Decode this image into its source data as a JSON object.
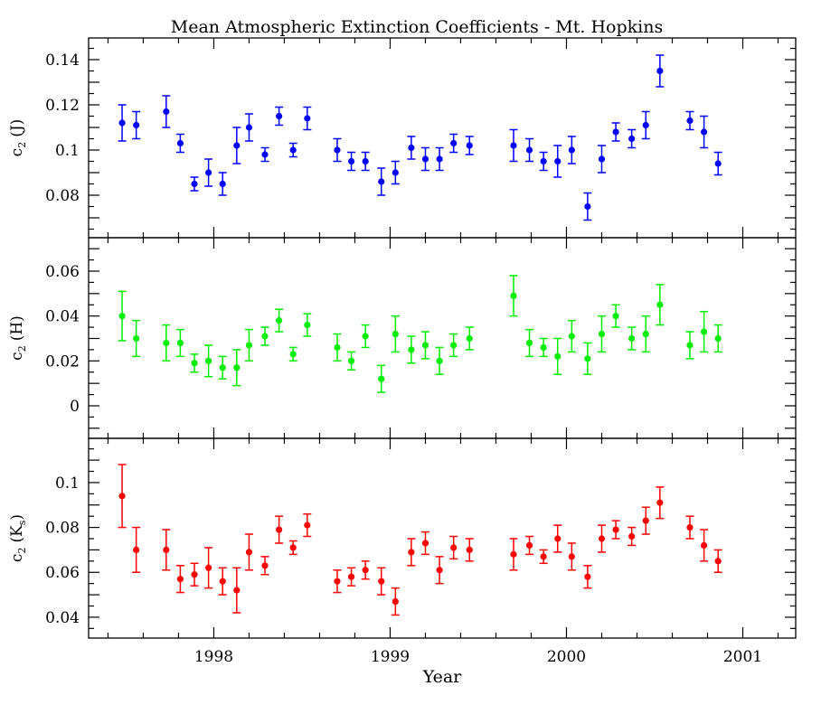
{
  "chart_data": {
    "type": "scatter",
    "title": "Mean Atmospheric Extinction Coefficients - Mt. Hopkins",
    "xlabel": "Year",
    "xlim": [
      1997.29,
      2001.3
    ],
    "x_ticks": [
      1998,
      1999,
      2000,
      2001
    ],
    "x_tick_labels": [
      "1998",
      "1999",
      "2000",
      "2001"
    ],
    "x_minor_step": 0.2,
    "panels": [
      {
        "name": "J",
        "ylabel_main": "c",
        "ylabel_sub": "2",
        "ylabel_band": "(J)",
        "ylabel_band_sub": "",
        "color": "#0000ff",
        "ylim": [
          0.0612,
          0.1496
        ],
        "y_ticks": [
          0.08,
          0.1,
          0.12,
          0.14
        ],
        "y_tick_labels": [
          "0.08",
          "0.1",
          "0.12",
          "0.14"
        ],
        "y_minor_step": 0.005,
        "points": [
          {
            "x": 1997.48,
            "y": 0.112,
            "err": 0.008
          },
          {
            "x": 1997.56,
            "y": 0.111,
            "err": 0.006
          },
          {
            "x": 1997.73,
            "y": 0.117,
            "err": 0.007
          },
          {
            "x": 1997.81,
            "y": 0.103,
            "err": 0.004
          },
          {
            "x": 1997.89,
            "y": 0.085,
            "err": 0.003
          },
          {
            "x": 1997.97,
            "y": 0.09,
            "err": 0.006
          },
          {
            "x": 1998.05,
            "y": 0.085,
            "err": 0.005
          },
          {
            "x": 1998.13,
            "y": 0.102,
            "err": 0.008
          },
          {
            "x": 1998.2,
            "y": 0.11,
            "err": 0.006
          },
          {
            "x": 1998.29,
            "y": 0.098,
            "err": 0.003
          },
          {
            "x": 1998.37,
            "y": 0.115,
            "err": 0.004
          },
          {
            "x": 1998.45,
            "y": 0.1,
            "err": 0.003
          },
          {
            "x": 1998.53,
            "y": 0.114,
            "err": 0.005
          },
          {
            "x": 1998.7,
            "y": 0.1,
            "err": 0.005
          },
          {
            "x": 1998.78,
            "y": 0.095,
            "err": 0.004
          },
          {
            "x": 1998.86,
            "y": 0.095,
            "err": 0.004
          },
          {
            "x": 1998.95,
            "y": 0.086,
            "err": 0.006
          },
          {
            "x": 1999.03,
            "y": 0.09,
            "err": 0.005
          },
          {
            "x": 1999.12,
            "y": 0.101,
            "err": 0.005
          },
          {
            "x": 1999.2,
            "y": 0.096,
            "err": 0.005
          },
          {
            "x": 1999.28,
            "y": 0.096,
            "err": 0.005
          },
          {
            "x": 1999.36,
            "y": 0.103,
            "err": 0.004
          },
          {
            "x": 1999.45,
            "y": 0.102,
            "err": 0.004
          },
          {
            "x": 1999.7,
            "y": 0.102,
            "err": 0.007
          },
          {
            "x": 1999.79,
            "y": 0.1,
            "err": 0.005
          },
          {
            "x": 1999.87,
            "y": 0.095,
            "err": 0.004
          },
          {
            "x": 1999.95,
            "y": 0.095,
            "err": 0.007
          },
          {
            "x": 2000.03,
            "y": 0.1,
            "err": 0.006
          },
          {
            "x": 2000.12,
            "y": 0.075,
            "err": 0.006
          },
          {
            "x": 2000.2,
            "y": 0.096,
            "err": 0.006
          },
          {
            "x": 2000.28,
            "y": 0.108,
            "err": 0.004
          },
          {
            "x": 2000.37,
            "y": 0.105,
            "err": 0.004
          },
          {
            "x": 2000.45,
            "y": 0.111,
            "err": 0.006
          },
          {
            "x": 2000.53,
            "y": 0.135,
            "err": 0.007
          },
          {
            "x": 2000.7,
            "y": 0.113,
            "err": 0.004
          },
          {
            "x": 2000.78,
            "y": 0.108,
            "err": 0.007
          },
          {
            "x": 2000.86,
            "y": 0.094,
            "err": 0.005
          }
        ]
      },
      {
        "name": "H",
        "ylabel_main": "c",
        "ylabel_sub": "2",
        "ylabel_band": "(H)",
        "ylabel_band_sub": "",
        "color": "#00ee00",
        "ylim": [
          -0.0145,
          0.0749
        ],
        "y_ticks": [
          0,
          0.02,
          0.04,
          0.06
        ],
        "y_tick_labels": [
          "0",
          "0.02",
          "0.04",
          "0.06"
        ],
        "y_minor_step": 0.005,
        "points": [
          {
            "x": 1997.48,
            "y": 0.04,
            "err": 0.011
          },
          {
            "x": 1997.56,
            "y": 0.03,
            "err": 0.008
          },
          {
            "x": 1997.73,
            "y": 0.028,
            "err": 0.008
          },
          {
            "x": 1997.81,
            "y": 0.028,
            "err": 0.006
          },
          {
            "x": 1997.89,
            "y": 0.019,
            "err": 0.004
          },
          {
            "x": 1997.97,
            "y": 0.02,
            "err": 0.007
          },
          {
            "x": 1998.05,
            "y": 0.017,
            "err": 0.005
          },
          {
            "x": 1998.13,
            "y": 0.017,
            "err": 0.008
          },
          {
            "x": 1998.2,
            "y": 0.027,
            "err": 0.007
          },
          {
            "x": 1998.29,
            "y": 0.031,
            "err": 0.004
          },
          {
            "x": 1998.37,
            "y": 0.038,
            "err": 0.005
          },
          {
            "x": 1998.45,
            "y": 0.023,
            "err": 0.003
          },
          {
            "x": 1998.53,
            "y": 0.036,
            "err": 0.005
          },
          {
            "x": 1998.7,
            "y": 0.026,
            "err": 0.006
          },
          {
            "x": 1998.78,
            "y": 0.02,
            "err": 0.004
          },
          {
            "x": 1998.86,
            "y": 0.031,
            "err": 0.005
          },
          {
            "x": 1998.95,
            "y": 0.012,
            "err": 0.006
          },
          {
            "x": 1999.03,
            "y": 0.032,
            "err": 0.008
          },
          {
            "x": 1999.12,
            "y": 0.025,
            "err": 0.006
          },
          {
            "x": 1999.2,
            "y": 0.027,
            "err": 0.006
          },
          {
            "x": 1999.28,
            "y": 0.02,
            "err": 0.006
          },
          {
            "x": 1999.36,
            "y": 0.027,
            "err": 0.005
          },
          {
            "x": 1999.45,
            "y": 0.03,
            "err": 0.005
          },
          {
            "x": 1999.7,
            "y": 0.049,
            "err": 0.009
          },
          {
            "x": 1999.79,
            "y": 0.028,
            "err": 0.006
          },
          {
            "x": 1999.87,
            "y": 0.026,
            "err": 0.004
          },
          {
            "x": 1999.95,
            "y": 0.022,
            "err": 0.008
          },
          {
            "x": 2000.03,
            "y": 0.031,
            "err": 0.007
          },
          {
            "x": 2000.12,
            "y": 0.021,
            "err": 0.007
          },
          {
            "x": 2000.2,
            "y": 0.032,
            "err": 0.008
          },
          {
            "x": 2000.28,
            "y": 0.04,
            "err": 0.005
          },
          {
            "x": 2000.37,
            "y": 0.03,
            "err": 0.005
          },
          {
            "x": 2000.45,
            "y": 0.032,
            "err": 0.008
          },
          {
            "x": 2000.53,
            "y": 0.045,
            "err": 0.009
          },
          {
            "x": 2000.7,
            "y": 0.027,
            "err": 0.006
          },
          {
            "x": 2000.78,
            "y": 0.033,
            "err": 0.009
          },
          {
            "x": 2000.86,
            "y": 0.03,
            "err": 0.006
          }
        ]
      },
      {
        "name": "Ks",
        "ylabel_main": "c",
        "ylabel_sub": "2",
        "ylabel_band": "(K",
        "ylabel_band_sub": "s",
        "ylabel_band_close": ")",
        "color": "#ff0000",
        "ylim": [
          0.0307,
          0.1197
        ],
        "y_ticks": [
          0.04,
          0.06,
          0.08,
          0.1
        ],
        "y_tick_labels": [
          "0.04",
          "0.06",
          "0.08",
          "0.1"
        ],
        "y_minor_step": 0.005,
        "points": [
          {
            "x": 1997.48,
            "y": 0.094,
            "err": 0.014
          },
          {
            "x": 1997.56,
            "y": 0.07,
            "err": 0.01
          },
          {
            "x": 1997.73,
            "y": 0.07,
            "err": 0.009
          },
          {
            "x": 1997.81,
            "y": 0.057,
            "err": 0.006
          },
          {
            "x": 1997.89,
            "y": 0.059,
            "err": 0.005
          },
          {
            "x": 1997.97,
            "y": 0.062,
            "err": 0.009
          },
          {
            "x": 1998.05,
            "y": 0.056,
            "err": 0.006
          },
          {
            "x": 1998.13,
            "y": 0.052,
            "err": 0.01
          },
          {
            "x": 1998.2,
            "y": 0.069,
            "err": 0.008
          },
          {
            "x": 1998.29,
            "y": 0.063,
            "err": 0.004
          },
          {
            "x": 1998.37,
            "y": 0.079,
            "err": 0.006
          },
          {
            "x": 1998.45,
            "y": 0.071,
            "err": 0.003
          },
          {
            "x": 1998.53,
            "y": 0.081,
            "err": 0.005
          },
          {
            "x": 1998.7,
            "y": 0.056,
            "err": 0.005
          },
          {
            "x": 1998.78,
            "y": 0.058,
            "err": 0.004
          },
          {
            "x": 1998.86,
            "y": 0.061,
            "err": 0.004
          },
          {
            "x": 1998.95,
            "y": 0.056,
            "err": 0.006
          },
          {
            "x": 1999.03,
            "y": 0.047,
            "err": 0.006
          },
          {
            "x": 1999.12,
            "y": 0.069,
            "err": 0.006
          },
          {
            "x": 1999.2,
            "y": 0.073,
            "err": 0.005
          },
          {
            "x": 1999.28,
            "y": 0.061,
            "err": 0.006
          },
          {
            "x": 1999.36,
            "y": 0.071,
            "err": 0.005
          },
          {
            "x": 1999.45,
            "y": 0.07,
            "err": 0.005
          },
          {
            "x": 1999.7,
            "y": 0.068,
            "err": 0.007
          },
          {
            "x": 1999.79,
            "y": 0.072,
            "err": 0.004
          },
          {
            "x": 1999.87,
            "y": 0.067,
            "err": 0.003
          },
          {
            "x": 1999.95,
            "y": 0.075,
            "err": 0.006
          },
          {
            "x": 2000.03,
            "y": 0.067,
            "err": 0.006
          },
          {
            "x": 2000.12,
            "y": 0.058,
            "err": 0.005
          },
          {
            "x": 2000.2,
            "y": 0.075,
            "err": 0.006
          },
          {
            "x": 2000.28,
            "y": 0.079,
            "err": 0.004
          },
          {
            "x": 2000.37,
            "y": 0.076,
            "err": 0.004
          },
          {
            "x": 2000.45,
            "y": 0.083,
            "err": 0.006
          },
          {
            "x": 2000.53,
            "y": 0.091,
            "err": 0.007
          },
          {
            "x": 2000.7,
            "y": 0.08,
            "err": 0.005
          },
          {
            "x": 2000.78,
            "y": 0.072,
            "err": 0.007
          },
          {
            "x": 2000.86,
            "y": 0.065,
            "err": 0.005
          }
        ]
      }
    ]
  }
}
